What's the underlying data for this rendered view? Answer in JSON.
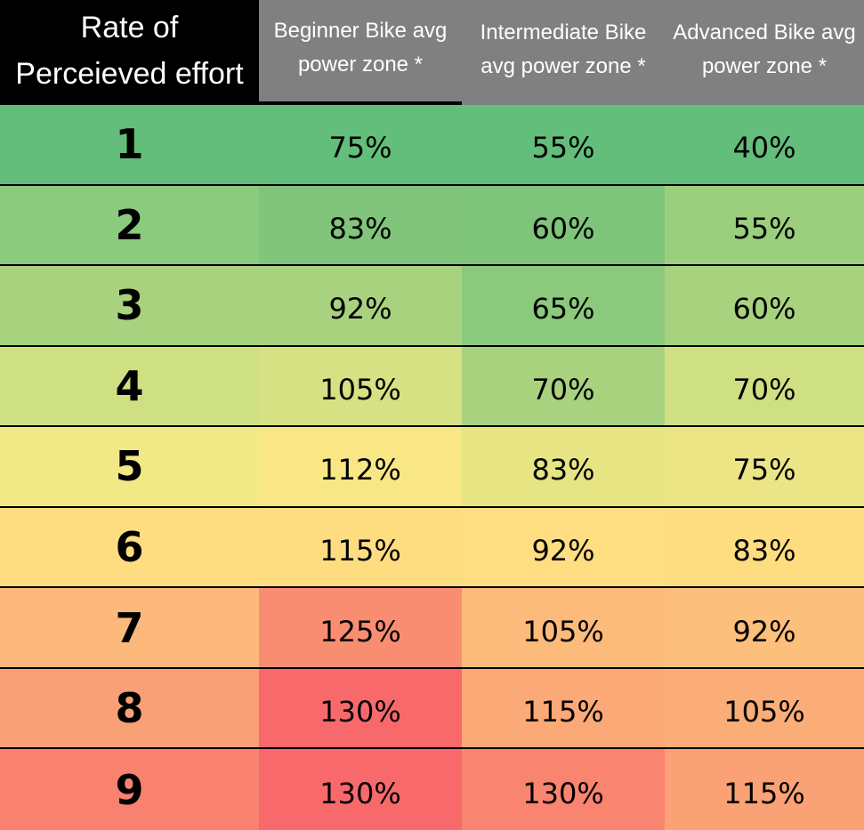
{
  "header": {
    "rpe_title_line1": "Rate of",
    "rpe_title_line2": "Perceieved effort",
    "columns": [
      {
        "line1": "Beginner Bike avg",
        "line2": "power zone *"
      },
      {
        "line1": "Intermediate Bike",
        "line2": "avg power zone *"
      },
      {
        "line1": "Advanced Bike avg",
        "line2": "power zone *"
      }
    ]
  },
  "colors": {
    "header_main_bg": "#000000",
    "header_col_bg": "#808080",
    "row_bg": [
      "#63be7b",
      "#8acb7d",
      "#a9d27f",
      "#cfe083",
      "#f1e886",
      "#fedd81",
      "#fcb97b",
      "#faa076",
      "#f8816f"
    ],
    "cells_bg": [
      [
        "#63be7b",
        "#63be7b",
        "#63be7b"
      ],
      [
        "#80c57b",
        "#7ec47b",
        "#9bcf7e"
      ],
      [
        "#a9d27f",
        "#8bca7c",
        "#a9d27f"
      ],
      [
        "#d6e183",
        "#a9d27f",
        "#cfe083"
      ],
      [
        "#f8e784",
        "#e6e483",
        "#ece585"
      ],
      [
        "#fedd81",
        "#fede81",
        "#fedd81"
      ],
      [
        "#f98d72",
        "#fcbb7b",
        "#fdbf7c"
      ],
      [
        "#f8696b",
        "#fba977",
        "#fbad78"
      ],
      [
        "#f8696b",
        "#f9846f",
        "#faa275"
      ]
    ]
  },
  "chart_data": {
    "type": "table",
    "columns": [
      "Beginner Bike avg power zone *",
      "Intermediate Bike avg power zone *",
      "Advanced Bike avg power zone *"
    ],
    "rows": [
      {
        "rpe": "1",
        "values": [
          "75%",
          "55%",
          "40%"
        ]
      },
      {
        "rpe": "2",
        "values": [
          "83%",
          "60%",
          "55%"
        ]
      },
      {
        "rpe": "3",
        "values": [
          "92%",
          "65%",
          "60%"
        ]
      },
      {
        "rpe": "4",
        "values": [
          "105%",
          "70%",
          "70%"
        ]
      },
      {
        "rpe": "5",
        "values": [
          "112%",
          "83%",
          "75%"
        ]
      },
      {
        "rpe": "6",
        "values": [
          "115%",
          "92%",
          "83%"
        ]
      },
      {
        "rpe": "7",
        "values": [
          "125%",
          "105%",
          "92%"
        ]
      },
      {
        "rpe": "8",
        "values": [
          "130%",
          "115%",
          "105%"
        ]
      },
      {
        "rpe": "9",
        "values": [
          "130%",
          "130%",
          "115%"
        ]
      }
    ]
  }
}
